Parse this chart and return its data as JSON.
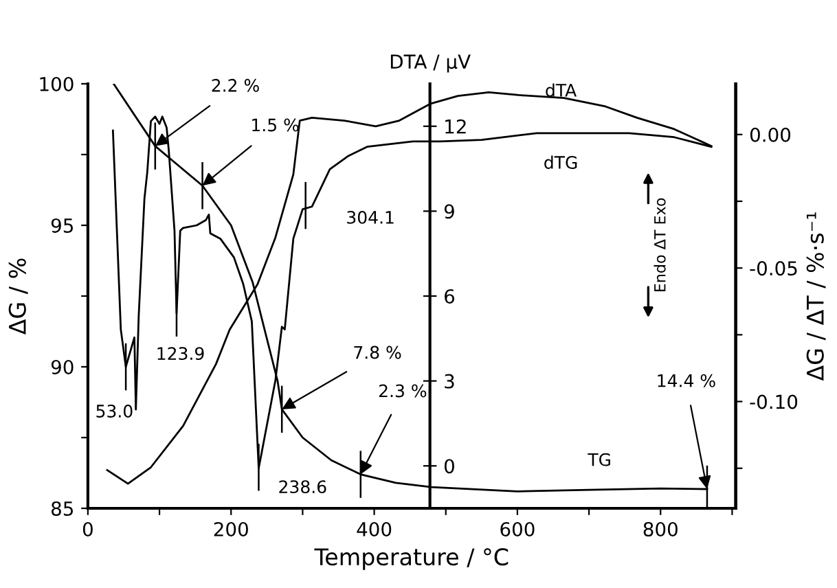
{
  "chart_data": {
    "type": "line",
    "xlabel": "Temperature / °C",
    "ylabel": "ΔG / %",
    "y2label": "ΔG / ΔT / %·s⁻¹",
    "y3label": "DTA / μV",
    "xlim": [
      0,
      905
    ],
    "xticks": [
      0,
      {
        "value": 100,
        "label": null
      },
      200,
      {
        "value": 300,
        "label": null
      },
      400,
      {
        "value": 500,
        "label": null
      },
      600,
      {
        "value": 700,
        "label": null
      },
      800,
      {
        "value": 900,
        "label": null
      }
    ],
    "ylim": [
      85,
      100
    ],
    "yticks": [
      85,
      {
        "value": 87.5,
        "label": null
      },
      90,
      {
        "value": 92.5,
        "label": null
      },
      95,
      {
        "value": 97.5,
        "label": null
      },
      100
    ],
    "y2lim": [
      -0.14,
      0.019
    ],
    "y2ticks": [
      {
        "value": -0.125,
        "label": null
      },
      {
        "value": -0.1,
        "label": "-0.10"
      },
      {
        "value": -0.075,
        "label": null
      },
      {
        "value": -0.05,
        "label": "-0.05"
      },
      {
        "value": -0.025,
        "label": null
      },
      {
        "value": 0,
        "label": "0.00"
      }
    ],
    "y3lim": [
      -1.5,
      13.5
    ],
    "y3ticks": [
      0,
      3,
      6,
      9,
      12
    ],
    "grid": false,
    "legend": false,
    "series": [
      {
        "name": "TG",
        "color": "#000000",
        "x": [
          36,
          94,
          160,
          200,
          230,
          250,
          265,
          271,
          300,
          340,
          381,
          430,
          480,
          600,
          700,
          800,
          865
        ],
        "values": [
          100.0,
          97.8,
          96.4,
          95.0,
          93.0,
          91.0,
          89.5,
          88.5,
          87.5,
          86.7,
          86.2,
          85.9,
          85.75,
          85.6,
          85.65,
          85.7,
          85.68
        ]
      },
      {
        "name": "dTG",
        "color": "#000000",
        "axis": "y2",
        "x": [
          35,
          46,
          53,
          65,
          67,
          71,
          79,
          83,
          88,
          94,
          100,
          104,
          110,
          113,
          121,
          123.9,
          129,
          133,
          152,
          165,
          169,
          171,
          185,
          204,
          217,
          229,
          238.6,
          262,
          271,
          275,
          287,
          300,
          313,
          338,
          364,
          390,
          454,
          492,
          550,
          627,
          756,
          819,
          871
        ],
        "values": [
          0.0015,
          -0.073,
          -0.087,
          -0.076,
          -0.103,
          -0.068,
          -0.024,
          -0.014,
          0.005,
          0.0067,
          0.004,
          0.0067,
          0.0026,
          -0.006,
          -0.036,
          -0.067,
          -0.036,
          -0.035,
          -0.034,
          -0.032,
          -0.03,
          -0.037,
          -0.039,
          -0.046,
          -0.056,
          -0.07,
          -0.125,
          -0.092,
          -0.072,
          -0.073,
          -0.039,
          -0.028,
          -0.027,
          -0.013,
          -0.008,
          -0.0046,
          -0.0026,
          -0.0026,
          -0.002,
          0.0005,
          0.0005,
          -0.001,
          -0.0046
        ]
      },
      {
        "name": "dTA",
        "color": "#000000",
        "axis": "y3",
        "x": [
          27,
          56,
          88,
          133,
          179,
          198,
          237,
          262,
          287,
          296,
          313,
          358,
          402,
          435,
          479,
          517,
          560,
          602,
          665,
          723,
          767,
          819,
          871
        ],
        "values": [
          -0.15,
          -0.63,
          -0.05,
          1.41,
          3.6,
          4.81,
          6.42,
          8.07,
          10.3,
          12.2,
          12.3,
          12.2,
          12.0,
          12.2,
          12.8,
          13.07,
          13.2,
          13.1,
          13.0,
          12.7,
          12.3,
          11.9,
          11.3
        ]
      }
    ],
    "annotations": [
      {
        "text": "2.2 %",
        "x": 94,
        "y": 97.8
      },
      {
        "text": "1.5 %",
        "x": 160,
        "y": 96.4
      },
      {
        "text": "7.8 %",
        "x": 271,
        "y": 88.5
      },
      {
        "text": "2.3 %",
        "x": 381,
        "y": 86.2
      },
      {
        "text": "14.4 %",
        "x": 865,
        "y": 85.68
      },
      {
        "text": "53.0",
        "x": 53,
        "y": 90.0
      },
      {
        "text": "123.9",
        "x": 123.9,
        "y": 91.9
      },
      {
        "text": "238.6",
        "x": 238.6,
        "y": 86.45
      },
      {
        "text": "304.1",
        "x": 304.1,
        "y": 95.7
      },
      "Endo ΔT Exo"
    ]
  }
}
